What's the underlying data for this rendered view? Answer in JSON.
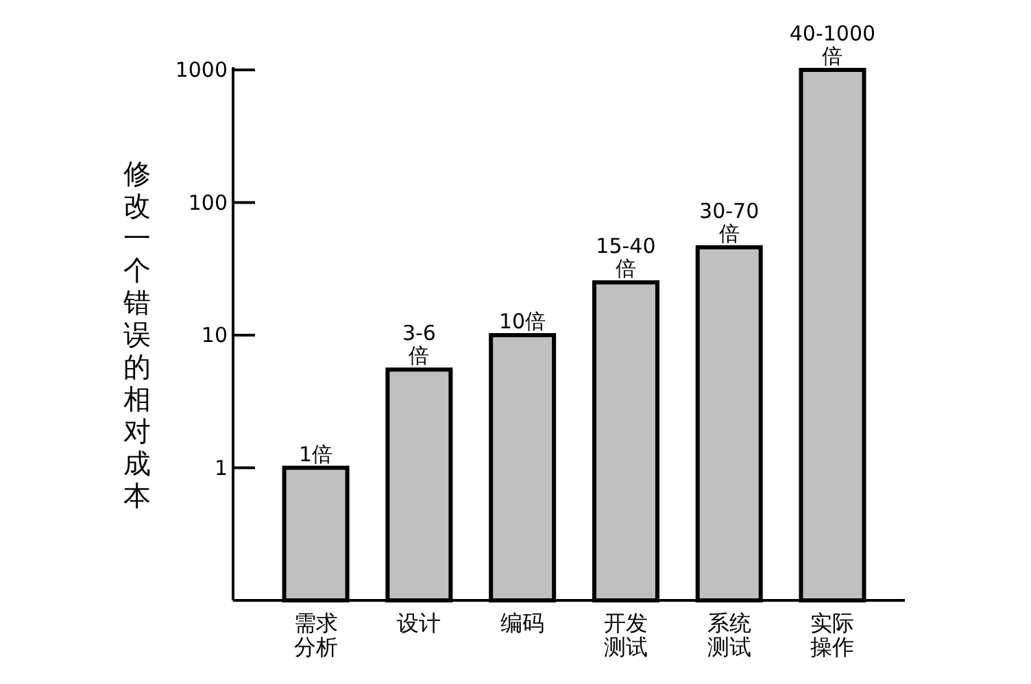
{
  "chart_data": {
    "type": "bar",
    "ylabel": "修改一个错误的相对成本",
    "categories": [
      "需求分析",
      "设计",
      "编码",
      "开发测试",
      "系统测试",
      "实际操作"
    ],
    "values": [
      1,
      5.5,
      10,
      25,
      46,
      1000
    ],
    "value_labels": [
      "1倍",
      "3-6\n倍",
      "10倍",
      "15-40\n倍",
      "30-70\n倍",
      "40-1000\n倍"
    ],
    "color": "#c0c0c0",
    "log": true,
    "ylim": [
      0.1,
      1000
    ],
    "yticks": [
      1,
      10,
      100,
      1000
    ],
    "grid": false
  }
}
